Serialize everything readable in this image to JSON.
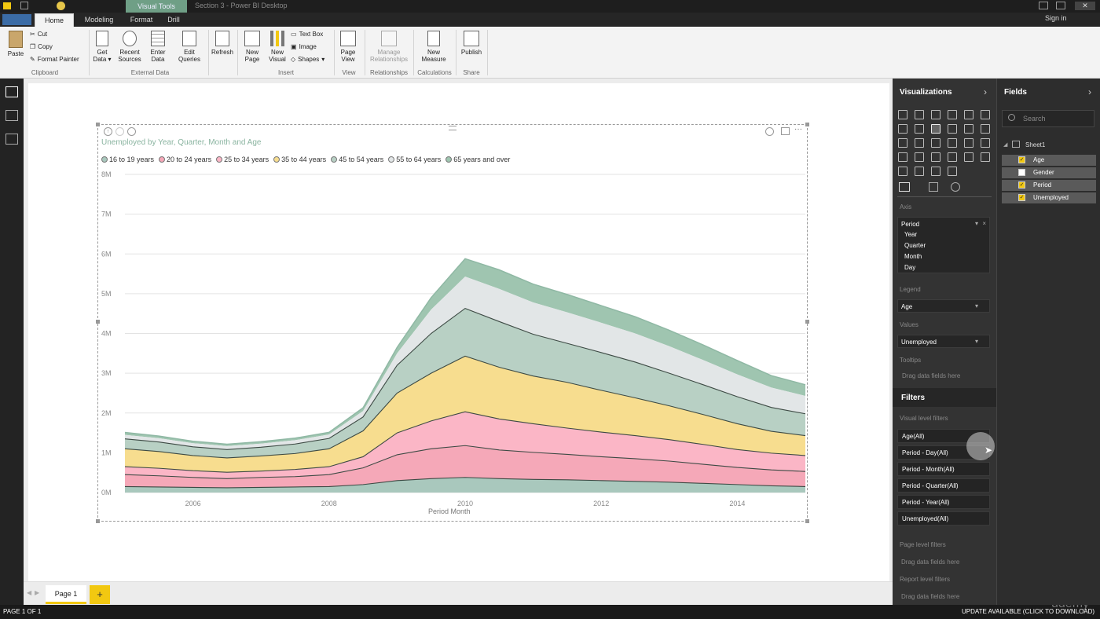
{
  "window": {
    "title": "Section 3 - Power BI Desktop",
    "context_tab": "Visual Tools",
    "sign_in": "Sign in"
  },
  "tabs": [
    "Home",
    "Modeling",
    "Format",
    "Drill"
  ],
  "ribbon": {
    "paste": "Paste",
    "cut": "Cut",
    "copy": "Copy",
    "format_painter": "Format Painter",
    "get_data": "Get Data",
    "recent_sources": "Recent Sources",
    "enter_data": "Enter Data",
    "edit_queries": "Edit Queries",
    "refresh": "Refresh",
    "new_page": "New Page",
    "new_visual": "New Visual",
    "text_box": "Text Box",
    "image": "Image",
    "shapes": "Shapes",
    "page_view": "Page View",
    "manage_relationships": "Manage Relationships",
    "new_measure": "New Measure",
    "publish": "Publish",
    "groups": {
      "clipboard": "Clipboard",
      "external_data": "External Data",
      "insert": "Insert",
      "view": "View",
      "relationships": "Relationships",
      "calculations": "Calculations",
      "share": "Share"
    }
  },
  "visual": {
    "title": "Unemployed by Year, Quarter, Month and Age",
    "x_axis_title": "Period Month"
  },
  "chart_data": {
    "type": "area",
    "stacked": true,
    "title": "Unemployed by Year, Quarter, Month and Age",
    "xlabel": "Period Month",
    "ylabel": "",
    "x_ticks": [
      "2006",
      "2008",
      "2010",
      "2012",
      "2014"
    ],
    "y_ticks": [
      "0M",
      "1M",
      "2M",
      "3M",
      "4M",
      "5M",
      "6M",
      "7M",
      "8M"
    ],
    "ylim": [
      0,
      8000000
    ],
    "legend_position": "top-left",
    "x": [
      2005.0,
      2005.5,
      2006.0,
      2006.5,
      2007.0,
      2007.5,
      2008.0,
      2008.5,
      2009.0,
      2009.5,
      2010.0,
      2010.5,
      2011.0,
      2011.5,
      2012.0,
      2012.5,
      2013.0,
      2013.5,
      2014.0,
      2014.5,
      2015.0
    ],
    "series": [
      {
        "name": "16 to 19 years",
        "color": "#a9c8bd",
        "values": [
          150000,
          140000,
          130000,
          120000,
          130000,
          140000,
          150000,
          200000,
          300000,
          350000,
          380000,
          350000,
          330000,
          320000,
          300000,
          280000,
          260000,
          230000,
          200000,
          170000,
          150000
        ]
      },
      {
        "name": "20 to 24 years",
        "color": "#f5a8b8",
        "values": [
          300000,
          280000,
          250000,
          230000,
          250000,
          260000,
          300000,
          420000,
          650000,
          750000,
          800000,
          720000,
          680000,
          640000,
          600000,
          570000,
          530000,
          480000,
          430000,
          400000,
          380000
        ]
      },
      {
        "name": "25 to 34 years",
        "color": "#fbb6c6",
        "values": [
          200000,
          190000,
          170000,
          160000,
          160000,
          180000,
          200000,
          280000,
          550000,
          700000,
          850000,
          780000,
          720000,
          660000,
          620000,
          580000,
          540000,
          500000,
          450000,
          420000,
          400000
        ]
      },
      {
        "name": "35 to 44 years",
        "color": "#f7dd8f",
        "values": [
          450000,
          420000,
          380000,
          360000,
          380000,
          400000,
          450000,
          650000,
          1000000,
          1200000,
          1400000,
          1300000,
          1200000,
          1150000,
          1050000,
          950000,
          850000,
          750000,
          650000,
          550000,
          500000
        ]
      },
      {
        "name": "45 to 54 years",
        "color": "#b8d0c4",
        "values": [
          250000,
          240000,
          220000,
          210000,
          220000,
          240000,
          260000,
          350000,
          700000,
          1000000,
          1200000,
          1150000,
          1050000,
          980000,
          950000,
          900000,
          820000,
          750000,
          680000,
          600000,
          550000
        ]
      },
      {
        "name": "55 to 64 years",
        "color": "#e2e6e7",
        "values": [
          100000,
          95000,
          90000,
          88000,
          90000,
          95000,
          100000,
          150000,
          300000,
          600000,
          800000,
          820000,
          800000,
          780000,
          750000,
          720000,
          680000,
          620000,
          560000,
          500000,
          450000
        ]
      },
      {
        "name": "65 years and over",
        "color": "#9fc5b0",
        "values": [
          60000,
          55000,
          50000,
          48000,
          50000,
          52000,
          55000,
          80000,
          150000,
          300000,
          450000,
          480000,
          460000,
          450000,
          430000,
          420000,
          400000,
          380000,
          350000,
          300000,
          280000
        ]
      }
    ],
    "boundary_lines": [
      "16 to 19 years",
      "20 to 24 years",
      "25 to 34 years",
      "35 to 44 years",
      "45 to 54 years"
    ]
  },
  "visualizations_pane": {
    "title": "Visualizations",
    "axis_label": "Axis",
    "axis_field": "Period",
    "axis_subitems": [
      "Year",
      "Quarter",
      "Month",
      "Day"
    ],
    "legend_label": "Legend",
    "legend_field": "Age",
    "values_label": "Values",
    "values_field": "Unemployed",
    "tooltips_label": "Tooltips",
    "drag_hint": "Drag data fields here"
  },
  "filters_pane": {
    "title": "Filters",
    "visual_level": "Visual level filters",
    "items": [
      "Age(All)",
      "Period - Day(All)",
      "Period - Month(All)",
      "Period - Quarter(All)",
      "Period - Year(All)",
      "Unemployed(All)"
    ],
    "page_level": "Page level filters",
    "page_drag": "Drag data fields here",
    "report_level": "Report level filters",
    "report_drag": "Drag data fields here"
  },
  "fields_pane": {
    "title": "Fields",
    "search_placeholder": "Search",
    "table": "Sheet1",
    "fields": [
      {
        "name": "Age",
        "checked": true
      },
      {
        "name": "Gender",
        "checked": false
      },
      {
        "name": "Period",
        "checked": true
      },
      {
        "name": "Unemployed",
        "checked": true
      }
    ]
  },
  "page_tabs": [
    "Page 1"
  ],
  "status": {
    "page": "PAGE 1 OF 1",
    "update": "UPDATE AVAILABLE (CLICK TO DOWNLOAD)",
    "watermark": "udemy"
  }
}
